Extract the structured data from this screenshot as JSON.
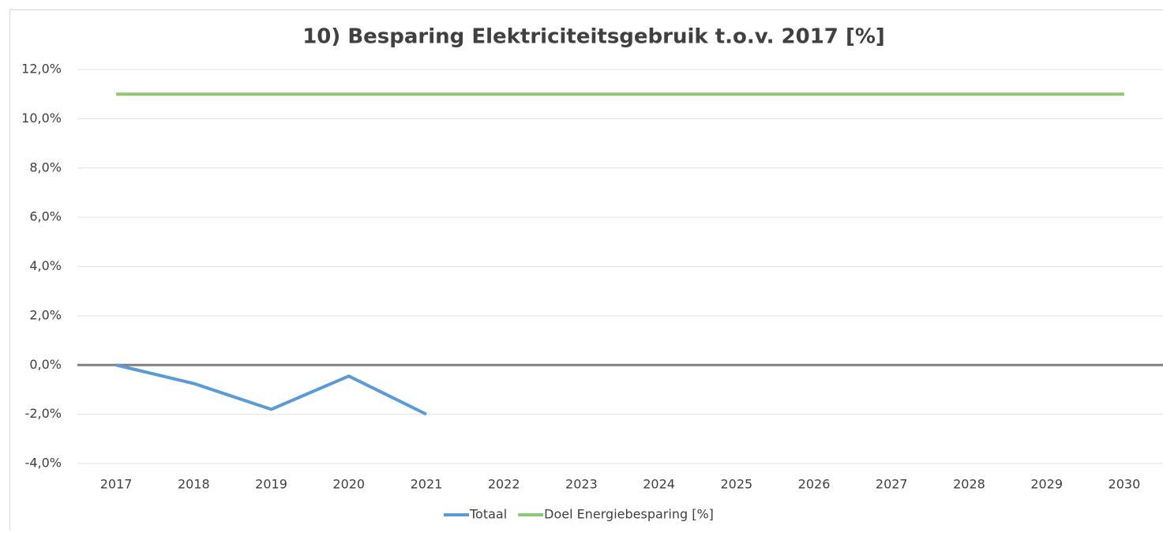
{
  "chart_data": {
    "type": "line",
    "title": "10) Besparing Elektriciteitsgebruik t.o.v. 2017 [%]",
    "categories": [
      "2017",
      "2018",
      "2019",
      "2020",
      "2021",
      "2022",
      "2023",
      "2024",
      "2025",
      "2026",
      "2027",
      "2028",
      "2029",
      "2030"
    ],
    "series": [
      {
        "name": "Totaal",
        "color": "#5b9bd5",
        "values": [
          0,
          -0.75,
          -1.8,
          -0.45,
          -2.0,
          null,
          null,
          null,
          null,
          null,
          null,
          null,
          null,
          null
        ]
      },
      {
        "name": "Doel Energiebesparing [%]",
        "color": "#8fc872",
        "values": [
          11,
          11,
          11,
          11,
          11,
          11,
          11,
          11,
          11,
          11,
          11,
          11,
          11,
          11
        ]
      }
    ],
    "ylim": [
      -4,
      12
    ],
    "yticks": [
      {
        "value": -4,
        "label": "-4,0%"
      },
      {
        "value": -2,
        "label": "-2,0%"
      },
      {
        "value": 0,
        "label": "0,0%"
      },
      {
        "value": 2,
        "label": "2,0%"
      },
      {
        "value": 4,
        "label": "4,0%"
      },
      {
        "value": 6,
        "label": "6,0%"
      },
      {
        "value": 8,
        "label": "8,0%"
      },
      {
        "value": 10,
        "label": "10,0%"
      },
      {
        "value": 12,
        "label": "12,0%"
      }
    ],
    "grid": true,
    "legend": "bottom"
  }
}
